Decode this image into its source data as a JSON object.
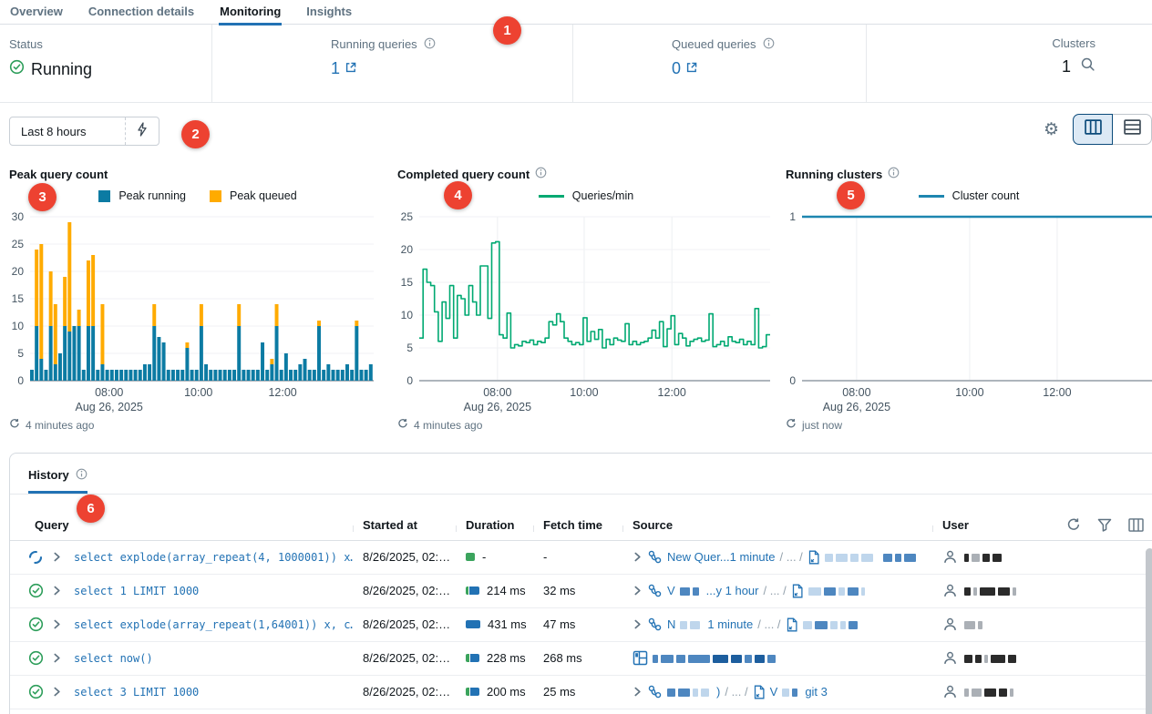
{
  "colors": {
    "accent_blue": "#2272B4",
    "bar_running": "#0C7BA3",
    "bar_queued": "#FFAB00",
    "line_green": "#00A972",
    "line_cluster": "#1E86B0",
    "status_green": "#2E9E5B",
    "badge_red": "#ED4231",
    "duration_green": "#3BA45D",
    "duration_blue": "#2272B4"
  },
  "tabs": [
    {
      "label": "Overview",
      "active": false
    },
    {
      "label": "Connection details",
      "active": false
    },
    {
      "label": "Monitoring",
      "active": true
    },
    {
      "label": "Insights",
      "active": false
    }
  ],
  "status_bar": {
    "items": [
      {
        "label": "Status",
        "value": "Running"
      },
      {
        "label": "Running queries",
        "value": "1",
        "info": true,
        "link": true
      },
      {
        "label": "Queued queries",
        "value": "0",
        "info": true,
        "link": true
      },
      {
        "label": "Clusters",
        "value": "1",
        "search": true
      }
    ]
  },
  "toolbar": {
    "time_range": "Last 8 hours"
  },
  "chart_data": [
    {
      "type": "bar",
      "stacked": true,
      "title": "Peak query count",
      "info_icon": false,
      "grid": "h",
      "ylim": [
        0,
        30
      ],
      "yticks": [
        0,
        5,
        10,
        15,
        20,
        25,
        30
      ],
      "xticks": [
        {
          "label": "08:00",
          "f": 0.23
        },
        {
          "label": "10:00",
          "f": 0.49
        },
        {
          "label": "12:00",
          "f": 0.735
        }
      ],
      "date_label": "Aug 26, 2025",
      "updated": "4 minutes ago",
      "series": [
        {
          "name": "Peak running",
          "color": "#0C7BA3",
          "values": [
            2,
            10,
            4,
            2,
            10,
            3,
            5,
            10,
            9,
            10,
            10,
            2,
            10,
            10,
            2,
            3,
            2,
            2,
            2,
            2,
            2,
            2,
            2,
            2,
            3,
            3,
            10,
            8,
            7,
            2,
            2,
            2,
            2,
            6,
            2,
            2,
            10,
            3,
            2,
            2,
            2,
            2,
            2,
            2,
            10,
            2,
            2,
            2,
            2,
            7,
            2,
            3,
            10,
            2,
            5,
            2,
            2,
            3,
            4,
            2,
            2,
            10,
            2,
            3,
            2,
            2,
            2,
            3,
            2,
            10,
            2,
            2,
            3
          ]
        },
        {
          "name": "Peak queued",
          "color": "#FFAB00",
          "values": [
            0,
            14,
            21,
            0,
            10,
            11,
            0,
            9,
            20,
            0,
            3,
            0,
            12,
            13,
            0,
            11,
            0,
            0,
            0,
            0,
            0,
            0,
            0,
            0,
            0,
            0,
            4,
            0,
            0,
            0,
            0,
            0,
            0,
            1,
            0,
            0,
            4,
            0,
            0,
            0,
            0,
            0,
            0,
            0,
            4,
            0,
            0,
            0,
            0,
            0,
            0,
            1,
            4,
            0,
            0,
            0,
            0,
            0,
            0,
            0,
            0,
            1,
            0,
            0,
            0,
            0,
            0,
            0,
            0,
            1,
            0,
            0,
            0
          ]
        }
      ]
    },
    {
      "type": "line",
      "step": true,
      "title": "Completed query count",
      "info_icon": true,
      "legend": "Queries/min",
      "color": "#00A972",
      "grid": "hv",
      "ylim": [
        0,
        25
      ],
      "yticks": [
        0,
        5,
        10,
        15,
        20,
        25
      ],
      "xticks": [
        {
          "label": "08:00",
          "f": 0.223
        },
        {
          "label": "10:00",
          "f": 0.47
        },
        {
          "label": "12:00",
          "f": 0.72
        }
      ],
      "date_label": "Aug 26, 2025",
      "updated": "4 minutes ago",
      "values": [
        6.5,
        17,
        15,
        14.5,
        10.5,
        6,
        12,
        9.5,
        14.5,
        6.5,
        13,
        12.5,
        10,
        14.5,
        12,
        10,
        17.5,
        17.5,
        9.5,
        21,
        21.2,
        7,
        6.5,
        10.3,
        5,
        5.5,
        5.3,
        6,
        5.8,
        6.2,
        5.5,
        6,
        5.8,
        6.5,
        9,
        8.5,
        10.2,
        9,
        6.5,
        6,
        5.5,
        5.8,
        5.5,
        9.6,
        6,
        7.5,
        6.3,
        7.8,
        5,
        6.3,
        5.5,
        6.5,
        6.2,
        6,
        8.7,
        5.5,
        6,
        5.5,
        5.8,
        6,
        6.5,
        7.7,
        6.5,
        9,
        5.2,
        7.9,
        9.9,
        5.5,
        7.2,
        6.5,
        5.3,
        6,
        6.3,
        6.5,
        6,
        6.2,
        10.2,
        5.2,
        5.5,
        6,
        5.3,
        6.7,
        6,
        5.8,
        6.3,
        5.5,
        6,
        5.5,
        11,
        5,
        5.2,
        7
      ]
    },
    {
      "type": "line",
      "step": false,
      "title": "Running clusters",
      "info_icon": true,
      "legend": "Cluster count",
      "color": "#1E86B0",
      "grid": "v",
      "ylim": [
        0,
        1
      ],
      "yticks": [
        0,
        1
      ],
      "xticks": [
        {
          "label": "08:00",
          "f": 0.156
        },
        {
          "label": "10:00",
          "f": 0.479
        },
        {
          "label": "12:00",
          "f": 0.729
        }
      ],
      "date_label": "Aug 26, 2025",
      "updated": "just now",
      "values": [
        1,
        1
      ]
    }
  ],
  "history": {
    "tab_label": "History",
    "columns": [
      "Query",
      "Started at",
      "Duration",
      "Fetch time",
      "Source",
      "User"
    ],
    "rows": [
      {
        "status": "running",
        "query": "select explode(array_repeat(4, 1000001)) x…",
        "started": "8/26/2025, 02:…",
        "duration_bar": [
          {
            "c": "green",
            "w": 10
          }
        ],
        "duration": "-",
        "fetch": "-",
        "source": [
          {
            "t": "chevron"
          },
          {
            "t": "qicon"
          },
          {
            "t": "text",
            "v": "New Quer...1 minute"
          },
          {
            "t": "sep",
            "v": "/ ... /"
          },
          {
            "t": "doc"
          },
          {
            "t": "red",
            "v": [
              [
                9,
                "lb"
              ],
              [
                13,
                "lb"
              ],
              [
                9,
                "lb"
              ],
              [
                13,
                "lb"
              ],
              [
                5,
                "gap"
              ],
              [
                10,
                "mb"
              ],
              [
                7,
                "mb"
              ],
              [
                13,
                "mb"
              ]
            ]
          }
        ],
        "user": [
          [
            5,
            "dk"
          ],
          [
            9,
            "gy"
          ],
          [
            8,
            "dk"
          ],
          [
            10,
            "dk"
          ]
        ]
      },
      {
        "status": "success",
        "query": "select 1 LIMIT 1000",
        "started": "8/26/2025, 02:…",
        "duration_bar": [
          {
            "c": "green",
            "w": 3
          },
          {
            "c": "blue",
            "w": 11
          }
        ],
        "duration": "214 ms",
        "fetch": "32 ms",
        "source": [
          {
            "t": "chevron"
          },
          {
            "t": "qicon"
          },
          {
            "t": "text",
            "v": "V"
          },
          {
            "t": "red",
            "v": [
              [
                11,
                "mb"
              ],
              [
                7,
                "mb"
              ]
            ]
          },
          {
            "t": "text",
            "v": "...y 1 hour"
          },
          {
            "t": "sep",
            "v": "/ ... /"
          },
          {
            "t": "doc"
          },
          {
            "t": "red",
            "v": [
              [
                14,
                "lb"
              ],
              [
                13,
                "mb"
              ],
              [
                7,
                "lb"
              ],
              [
                12,
                "mb"
              ],
              [
                4,
                "lb"
              ]
            ]
          }
        ],
        "user": [
          [
            7,
            "dk"
          ],
          [
            4,
            "gy"
          ],
          [
            17,
            "dk"
          ],
          [
            13,
            "dk"
          ],
          [
            4,
            "gy"
          ]
        ]
      },
      {
        "status": "success",
        "query": "select explode(array_repeat(1,64001)) x, c…",
        "started": "8/26/2025, 02:…",
        "duration_bar": [
          {
            "c": "blue",
            "w": 16
          }
        ],
        "duration": "431 ms",
        "fetch": "47 ms",
        "source": [
          {
            "t": "chevron"
          },
          {
            "t": "qicon"
          },
          {
            "t": "text",
            "v": "N"
          },
          {
            "t": "red",
            "v": [
              [
                8,
                "lb"
              ],
              [
                11,
                "lb"
              ]
            ]
          },
          {
            "t": "text",
            "v": "1 minute"
          },
          {
            "t": "sep",
            "v": "/ ... /"
          },
          {
            "t": "doc"
          },
          {
            "t": "red",
            "v": [
              [
                10,
                "lb"
              ],
              [
                14,
                "mb"
              ],
              [
                8,
                "lb"
              ],
              [
                6,
                "lb"
              ],
              [
                10,
                "mb"
              ]
            ]
          }
        ],
        "user": [
          [
            12,
            "gy"
          ],
          [
            5,
            "gy"
          ]
        ]
      },
      {
        "status": "success",
        "query": "select now()",
        "started": "8/26/2025, 02:…",
        "duration_bar": [
          {
            "c": "green",
            "w": 4
          },
          {
            "c": "blue",
            "w": 10
          }
        ],
        "duration": "228 ms",
        "fetch": "268 ms",
        "source": [
          {
            "t": "dashicon"
          },
          {
            "t": "red",
            "v": [
              [
                6,
                "mb"
              ],
              [
                14,
                "mb"
              ],
              [
                10,
                "mb"
              ],
              [
                24,
                "mb"
              ],
              [
                17,
                "db"
              ],
              [
                12,
                "db"
              ],
              [
                8,
                "mb"
              ],
              [
                11,
                "db"
              ],
              [
                9,
                "mb"
              ]
            ]
          }
        ],
        "user": [
          [
            9,
            "dk"
          ],
          [
            7,
            "dk"
          ],
          [
            4,
            "gy"
          ],
          [
            16,
            "dk"
          ],
          [
            9,
            "dk"
          ]
        ]
      },
      {
        "status": "success",
        "query": "select 3 LIMIT 1000",
        "started": "8/26/2025, 02:…",
        "duration_bar": [
          {
            "c": "green",
            "w": 4
          },
          {
            "c": "blue",
            "w": 10
          }
        ],
        "duration": "200 ms",
        "fetch": "25 ms",
        "source": [
          {
            "t": "chevron"
          },
          {
            "t": "qicon"
          },
          {
            "t": "red",
            "v": [
              [
                9,
                "mb"
              ],
              [
                13,
                "mb"
              ],
              [
                6,
                "lb"
              ],
              [
                9,
                "lb"
              ]
            ]
          },
          {
            "t": "text",
            "v": ")"
          },
          {
            "t": "sep",
            "v": "/ ... /"
          },
          {
            "t": "doc"
          },
          {
            "t": "text",
            "v": "V"
          },
          {
            "t": "red",
            "v": [
              [
                8,
                "lb"
              ],
              [
                6,
                "mb"
              ]
            ]
          },
          {
            "t": "text",
            "v": "git 3"
          }
        ],
        "user": [
          [
            5,
            "gy"
          ],
          [
            11,
            "gy"
          ],
          [
            13,
            "dk"
          ],
          [
            9,
            "dk"
          ],
          [
            4,
            "gy"
          ]
        ]
      }
    ]
  },
  "annotations": {
    "labels": [
      "1",
      "2",
      "3",
      "4",
      "5",
      "6"
    ]
  }
}
